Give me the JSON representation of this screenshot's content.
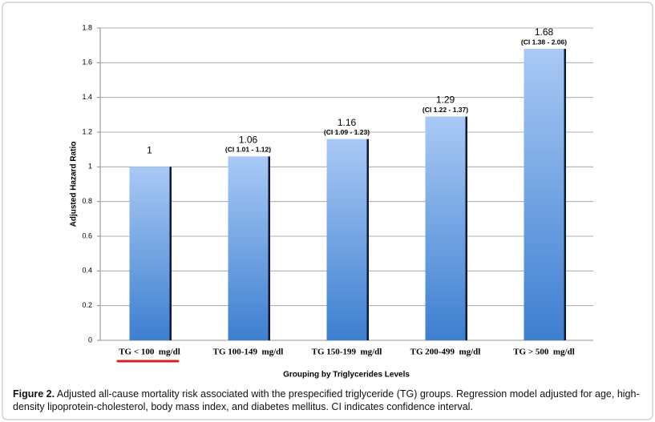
{
  "chart_data": {
    "type": "bar",
    "x_label": "Grouping by Triglycerides Levels",
    "y_label": "Adjusted Hazard Ratio",
    "categories": [
      "TG < 100  mg/dl",
      "TG 100-149  mg/dl",
      "TG 150-199  mg/dl",
      "TG 200-499  mg/dl",
      "TG > 500  mg/dl"
    ],
    "values": [
      1,
      1.06,
      1.16,
      1.29,
      1.68
    ],
    "ci_labels": [
      null,
      "(CI 1.01 - 1.12)",
      "(CI 1.09 - 1.23)",
      "(CI 1.22 - 1.37)",
      "(CI 1.38 - 2.06)"
    ],
    "color": "#5b9bd5",
    "ylim": [
      0,
      1.8
    ],
    "yticks": [
      0,
      0.2,
      0.4,
      0.6,
      0.8,
      1,
      1.2,
      1.4,
      1.6,
      1.8
    ],
    "grid": true
  },
  "caption": {
    "label": "Figure 2.",
    "text": "Adjusted all-cause mortality risk associated with the prespecified triglyceride (TG) groups. Regression model adjusted for age, high-density lipoprotein-cholesterol, body mass index, and diabetes mellitus. CI indicates confidence interval."
  }
}
